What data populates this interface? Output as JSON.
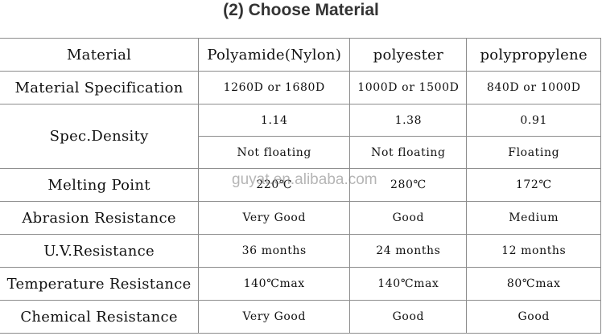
{
  "title": "(2) Choose Material",
  "watermark": "guyat.en.alibaba.com",
  "table": {
    "header": {
      "label": "Material",
      "columns": [
        "Polyamide(Nylon)",
        "polyester",
        "polypropylene"
      ]
    },
    "spec": {
      "label": "Material Specification",
      "values": [
        "1260D or 1680D",
        "1000D or 1500D",
        "840D or 1000D"
      ]
    },
    "density": {
      "label": "Spec.Density",
      "values": [
        "1.14",
        "1.38",
        "0.91"
      ],
      "floating": [
        "Not floating",
        "Not floating",
        "Floating"
      ]
    },
    "melting": {
      "label": "Melting Point",
      "values": [
        "220℃",
        "280℃",
        "172℃"
      ]
    },
    "abrasion": {
      "label": "Abrasion Resistance",
      "values": [
        "Very Good",
        "Good",
        "Medium"
      ]
    },
    "uv": {
      "label": "U.V.Resistance",
      "values": [
        "36 months",
        "24 months",
        "12 months"
      ]
    },
    "temperature": {
      "label": "Temperature Resistance",
      "values": [
        "140℃max",
        "140℃max",
        "80℃max"
      ]
    },
    "chemical": {
      "label": "Chemical Resistance",
      "values": [
        "Very Good",
        "Good",
        "Good"
      ]
    }
  }
}
